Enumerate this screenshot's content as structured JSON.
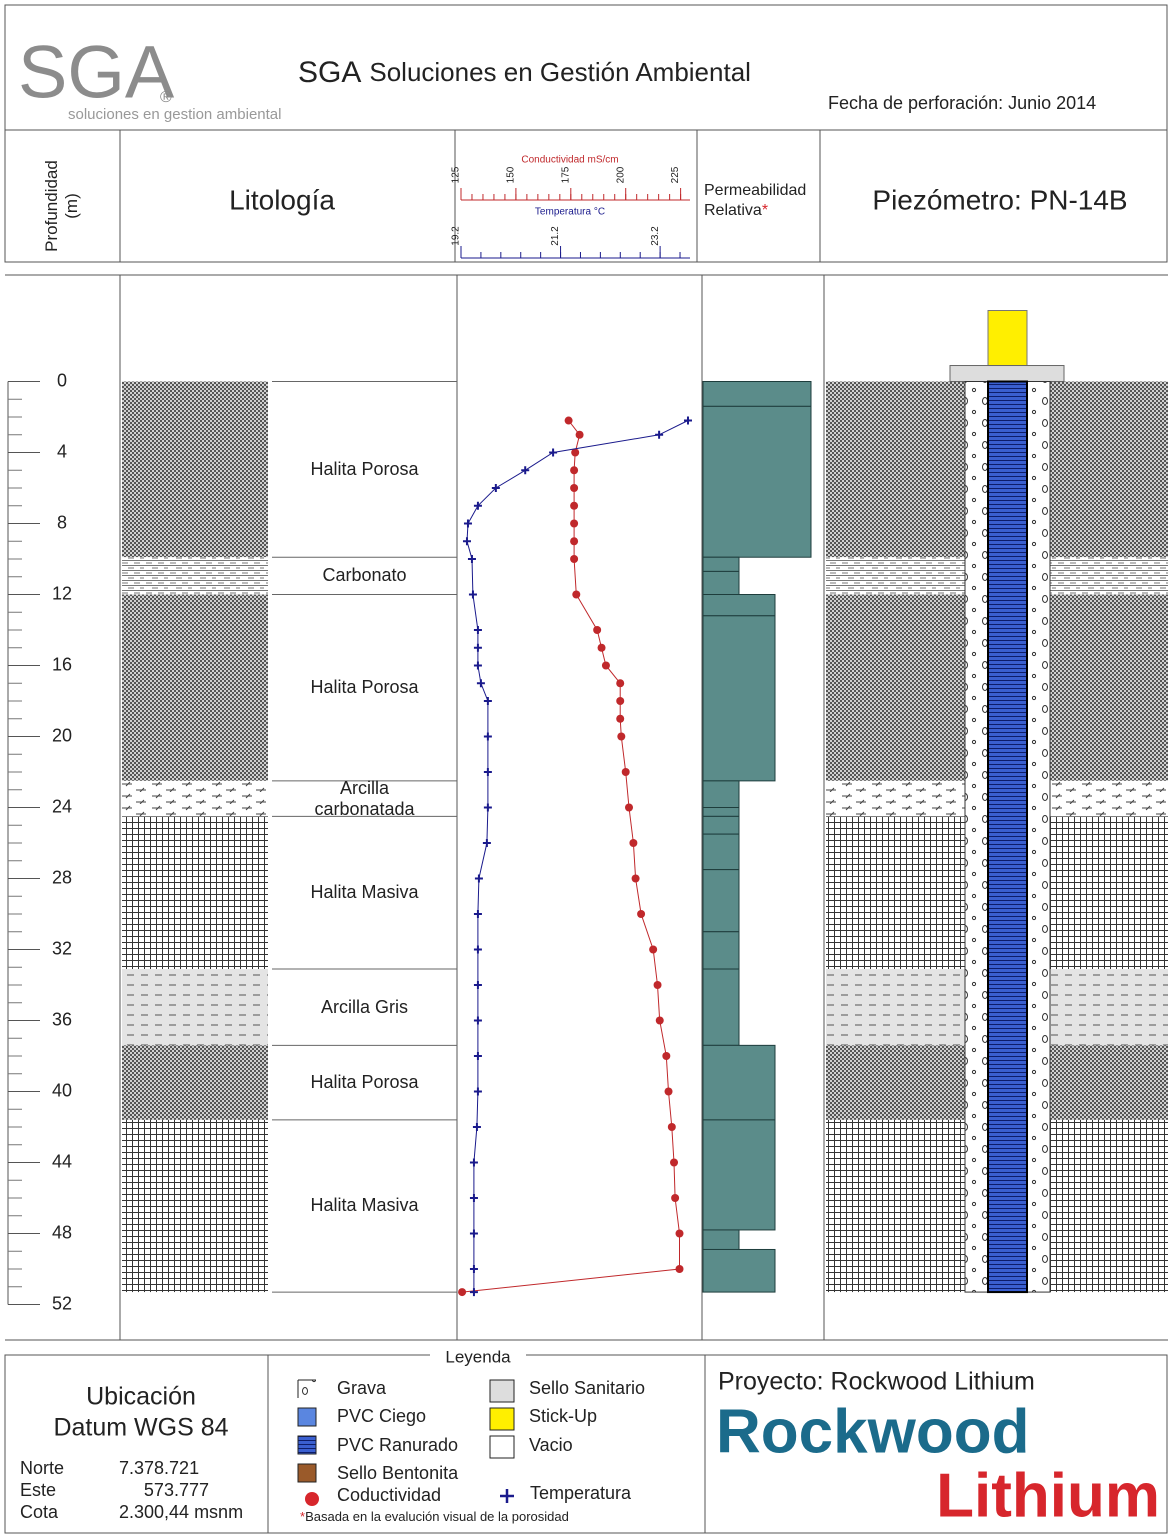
{
  "header": {
    "logo": "SGA",
    "logo_mark": "®",
    "logo_tagline": "soluciones en gestion ambiental",
    "title_abbr": "SGA",
    "title": "Soluciones en Gestión Ambiental",
    "date": "Fecha de perforación: Junio 2014"
  },
  "columns": {
    "lithology": "Litología",
    "permeability": "Permeabilidad Relativa",
    "note_marker": "*",
    "well": "Piezómetro: PN-14B"
  },
  "chart_data": {
    "type": "line",
    "ylabel": "Profundidad (m)",
    "ylim": [
      -6,
      54
    ],
    "yticks": [
      0,
      4,
      8,
      12,
      16,
      20,
      24,
      28,
      32,
      36,
      40,
      44,
      48,
      52
    ],
    "series": [
      {
        "name": "Conductividad mS/cm",
        "color": "#c0282b",
        "xlim": [
          125,
          227
        ],
        "xticks": [
          125,
          150,
          175,
          200,
          225
        ],
        "depth": [
          2.2,
          3,
          4,
          5,
          6,
          7,
          8,
          9,
          10,
          12,
          14,
          15,
          16,
          17,
          18,
          19,
          20,
          22,
          24,
          26,
          28,
          30,
          32,
          34,
          36,
          38,
          40,
          42,
          44,
          46,
          48,
          50,
          51.3
        ],
        "values": [
          174,
          179,
          177,
          176.5,
          176.5,
          176.5,
          176.5,
          176.5,
          176.5,
          177.5,
          187,
          189,
          191,
          197.5,
          197.5,
          197.5,
          198,
          200,
          201.5,
          203.5,
          204.5,
          207,
          212.5,
          214.5,
          215.5,
          218.5,
          219.5,
          221,
          222,
          222.5,
          224.5,
          224.5,
          125.5
        ]
      },
      {
        "name": "Temperatura °C",
        "color": "#1a1a8c",
        "xlim": [
          19.2,
          23.7
        ],
        "xticks": [
          19.2,
          21.2,
          23.2
        ],
        "depth": [
          2.2,
          3,
          4,
          5,
          6,
          7,
          8,
          9,
          10,
          12,
          14,
          15,
          16,
          17,
          18,
          20,
          22,
          24,
          26,
          28,
          30,
          32,
          34,
          36,
          38,
          40,
          42,
          44,
          46,
          48,
          50,
          51.3
        ],
        "values": [
          23.76,
          23.18,
          21.05,
          20.49,
          19.9,
          19.54,
          19.34,
          19.32,
          19.42,
          19.44,
          19.54,
          19.54,
          19.54,
          19.6,
          19.74,
          19.74,
          19.74,
          19.74,
          19.72,
          19.56,
          19.54,
          19.54,
          19.54,
          19.54,
          19.54,
          19.54,
          19.52,
          19.46,
          19.46,
          19.46,
          19.46,
          19.46
        ]
      }
    ]
  },
  "lithology": [
    {
      "label": "Halita Porosa",
      "from": 0,
      "to": 9.9
    },
    {
      "label": "Carbonato",
      "from": 9.9,
      "to": 12
    },
    {
      "label": "Halita Porosa",
      "from": 12,
      "to": 22.5
    },
    {
      "label": "Arcilla\ncarbonatada",
      "from": 22.5,
      "to": 24.5
    },
    {
      "label": "Halita Masiva",
      "from": 24.5,
      "to": 33.1
    },
    {
      "label": "Arcilla Gris",
      "from": 33.1,
      "to": 37.4
    },
    {
      "label": "Halita Porosa",
      "from": 37.4,
      "to": 41.6
    },
    {
      "label": "Halita Masiva",
      "from": 41.6,
      "to": 51.3
    }
  ],
  "permeability": {
    "xlim": [
      0,
      3
    ],
    "color": "#5b8c8a",
    "intervals": [
      {
        "from": 0,
        "to": 1.4,
        "value": 3
      },
      {
        "from": 1.4,
        "to": 9.9,
        "value": 3
      },
      {
        "from": 9.9,
        "to": 10.7,
        "value": 1
      },
      {
        "from": 10.7,
        "to": 12,
        "value": 1
      },
      {
        "from": 12,
        "to": 13.2,
        "value": 2
      },
      {
        "from": 13.2,
        "to": 22.5,
        "value": 2
      },
      {
        "from": 22.5,
        "to": 24,
        "value": 1
      },
      {
        "from": 24,
        "to": 24.5,
        "value": 1
      },
      {
        "from": 24.5,
        "to": 25.5,
        "value": 1
      },
      {
        "from": 25.5,
        "to": 27.5,
        "value": 1
      },
      {
        "from": 27.5,
        "to": 31,
        "value": 1
      },
      {
        "from": 31,
        "to": 33.1,
        "value": 1
      },
      {
        "from": 33.1,
        "to": 37.4,
        "value": 1
      },
      {
        "from": 37.4,
        "to": 41.6,
        "value": 2
      },
      {
        "from": 41.6,
        "to": 47.8,
        "value": 2
      },
      {
        "from": 47.8,
        "to": 48.9,
        "value": 1
      },
      {
        "from": 48.9,
        "to": 51.3,
        "value": 2
      }
    ]
  },
  "well": {
    "stick_up": [
      -4,
      -0.9
    ],
    "seal": [
      -0.9,
      0
    ],
    "screen": [
      0,
      51.3
    ]
  },
  "legend": {
    "title": "Leyenda",
    "items": [
      "Grava",
      "PVC Ciego",
      "PVC Ranurado",
      "Sello Bentonita",
      "Coductividad",
      "Sello Sanitario",
      "Stick-Up",
      "Vacio",
      "Temperatura"
    ],
    "note": "Basada en la evalución visual de la porosidad"
  },
  "location": {
    "title": "Ubicación",
    "datum": "Datum WGS 84",
    "rows": [
      [
        "Norte",
        "7.378.721"
      ],
      [
        "Este",
        "573.777"
      ],
      [
        "Cota",
        "2.300,44 msnm"
      ]
    ]
  },
  "project": {
    "title": "Proyecto: Rockwood Lithium",
    "logo_top": "Rockwood",
    "logo_bottom": "Lithium"
  }
}
